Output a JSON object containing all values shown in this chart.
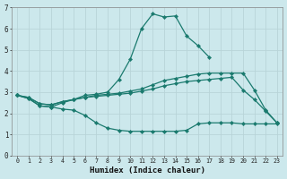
{
  "xlabel": "Humidex (Indice chaleur)",
  "background_color": "#cce8ec",
  "line_color": "#1a7a6e",
  "grid_color": "#b8d4d8",
  "xlim": [
    -0.5,
    23.5
  ],
  "ylim": [
    0,
    7
  ],
  "yticks": [
    0,
    1,
    2,
    3,
    4,
    5,
    6,
    7
  ],
  "xticks": [
    0,
    1,
    2,
    3,
    4,
    5,
    6,
    7,
    8,
    9,
    10,
    11,
    12,
    13,
    14,
    15,
    16,
    17,
    18,
    19,
    20,
    21,
    22,
    23
  ],
  "lines": [
    [
      2.85,
      2.7,
      2.35,
      2.3,
      2.5,
      2.65,
      2.85,
      2.9,
      3.0,
      3.6,
      4.55,
      6.0,
      6.7,
      6.55,
      6.6,
      5.65,
      5.2,
      4.65,
      null,
      null,
      null,
      null,
      null,
      null
    ],
    [
      2.85,
      2.75,
      2.45,
      2.4,
      2.55,
      2.65,
      2.75,
      2.85,
      2.9,
      2.95,
      3.05,
      3.15,
      3.35,
      3.55,
      3.65,
      3.75,
      3.85,
      3.9,
      3.9,
      3.9,
      3.9,
      3.1,
      2.15,
      1.55
    ],
    [
      2.85,
      2.75,
      2.45,
      2.4,
      2.55,
      2.65,
      2.75,
      2.8,
      2.85,
      2.9,
      2.95,
      3.05,
      3.15,
      3.3,
      3.4,
      3.5,
      3.55,
      3.6,
      3.65,
      3.7,
      3.1,
      2.65,
      2.1,
      1.55
    ],
    [
      2.85,
      2.7,
      2.35,
      2.3,
      2.2,
      2.15,
      1.9,
      1.55,
      1.3,
      1.2,
      1.15,
      1.15,
      1.15,
      1.15,
      1.15,
      1.2,
      1.5,
      1.55,
      1.55,
      1.55,
      1.5,
      1.5,
      1.5,
      1.5
    ]
  ]
}
